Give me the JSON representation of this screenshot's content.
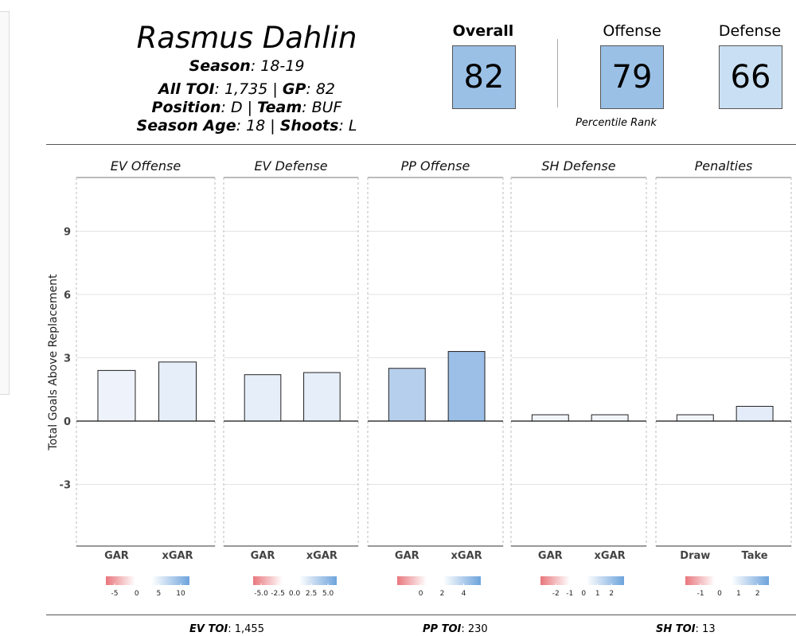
{
  "player": {
    "name": "Rasmus Dahlin",
    "season_label": "Season",
    "season": ": 18-19",
    "toi_label": "All TOI",
    "toi": ": 1,735 | ",
    "gp_label": "GP",
    "gp": ": 82",
    "position_label": "Position",
    "position": ": D | ",
    "team_label": "Team",
    "team": ": BUF",
    "age_label": "Season Age",
    "age": ": 18 | ",
    "shoots_label": "Shoots",
    "shoots": ": L"
  },
  "ranks": {
    "overall_label": "Overall",
    "overall": "82",
    "offense_label": "Offense",
    "offense": "79",
    "defense_label": "Defense",
    "defense": "66",
    "note": "Percentile Rank",
    "colors": {
      "overall": "#9bc0e6",
      "offense": "#9bc0e6",
      "defense": "#c9dff3"
    }
  },
  "chart_data": {
    "type": "bar",
    "ylabel": "Total Goals Above Replacement",
    "ylim": [
      -6,
      11.5
    ],
    "yticks": [
      "-3",
      "0",
      "3",
      "6",
      "9"
    ],
    "grid": true,
    "panels": [
      {
        "title": "EV Offense",
        "categories": [
          "GAR",
          "xGAR"
        ],
        "values": [
          2.4,
          2.8
        ],
        "colors": [
          "#eef3fb",
          "#e6eef9"
        ],
        "scale": {
          "ticks": [
            "-5",
            "0",
            "5",
            "10"
          ],
          "min": -7,
          "max": 12
        }
      },
      {
        "title": "EV Defense",
        "categories": [
          "GAR",
          "xGAR"
        ],
        "values": [
          2.2,
          2.3
        ],
        "colors": [
          "#e6eef9",
          "#e6eef9"
        ],
        "scale": {
          "ticks": [
            "-5.0",
            "-2.5",
            "0.0",
            "2.5",
            "5.0"
          ],
          "min": -6.2,
          "max": 6.3
        }
      },
      {
        "title": "PP Offense",
        "categories": [
          "GAR",
          "xGAR"
        ],
        "values": [
          2.5,
          3.3
        ],
        "colors": [
          "#b6cfec",
          "#9bbfe6"
        ],
        "scale": {
          "ticks": [
            "0",
            "2",
            "4"
          ],
          "min": -2.2,
          "max": 5.6
        }
      },
      {
        "title": "SH Defense",
        "categories": [
          "GAR",
          "xGAR"
        ],
        "values": [
          0.3,
          0.3
        ],
        "colors": [
          "#f2f6fc",
          "#f2f6fc"
        ],
        "scale": {
          "ticks": [
            "-2",
            "-1",
            "0",
            "1",
            "2"
          ],
          "min": -3.1,
          "max": 2.9
        }
      },
      {
        "title": "Penalties",
        "categories": [
          "Draw",
          "Take"
        ],
        "values": [
          0.3,
          0.7
        ],
        "colors": [
          "#f2f6fc",
          "#e3ecf8"
        ],
        "scale": {
          "ticks": [
            "-1",
            "0",
            "1",
            "2"
          ],
          "min": -1.8,
          "max": 2.6
        }
      }
    ]
  },
  "footer": {
    "ev_label": "EV TOI",
    "ev_value": ": 1,455",
    "pp_label": "PP TOI",
    "pp_value": ": 230",
    "sh_label": "SH TOI",
    "sh_value": ": 13"
  }
}
